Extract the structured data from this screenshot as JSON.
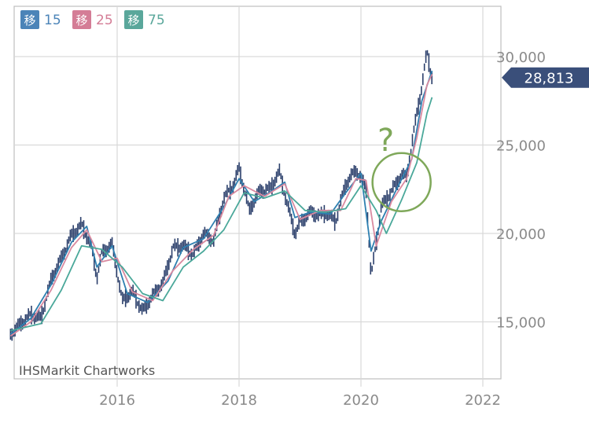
{
  "colors": {
    "grid": "#d9d9d9",
    "frame": "#bdbdbd",
    "candle": "#2b3f6b",
    "ma15": "#2e7fb0",
    "ma25": "#d98aa0",
    "ma75": "#4aa89a",
    "badge": "#3a4f7a",
    "annotation": "#7fa85a"
  },
  "legend": [
    {
      "tag": "移",
      "period": "15",
      "color": "#4b84b8"
    },
    {
      "tag": "移",
      "period": "25",
      "color": "#d47d96"
    },
    {
      "tag": "移",
      "period": "75",
      "color": "#5aa79b"
    }
  ],
  "watermark": "IHSMarkit Chartworks",
  "annotation": {
    "text": "?"
  },
  "chart_data": {
    "type": "line",
    "x_ticks": [
      "2016",
      "2018",
      "2020",
      "2022"
    ],
    "y_ticks": [
      15000,
      20000,
      25000,
      30000
    ],
    "y_tick_labels": [
      "15,000",
      "20,000",
      "25,000",
      "30,000"
    ],
    "ylim": [
      12000,
      31500
    ],
    "last_price": 28813,
    "last_price_label": "28,813",
    "grid": true,
    "annotation_circle": {
      "x": "2020-09",
      "y": 22900
    },
    "price": [
      [
        "2014-04",
        14300
      ],
      [
        "2014-06",
        14900
      ],
      [
        "2014-08",
        15400
      ],
      [
        "2014-10",
        15200
      ],
      [
        "2014-12",
        17400
      ],
      [
        "2015-02",
        18600
      ],
      [
        "2015-04",
        19900
      ],
      [
        "2015-06",
        20500
      ],
      [
        "2015-08",
        19200
      ],
      [
        "2015-09",
        17500
      ],
      [
        "2015-10",
        18900
      ],
      [
        "2015-12",
        19400
      ],
      [
        "2016-02",
        16200
      ],
      [
        "2016-04",
        16700
      ],
      [
        "2016-06",
        15600
      ],
      [
        "2016-08",
        16500
      ],
      [
        "2016-10",
        17200
      ],
      [
        "2016-12",
        19200
      ],
      [
        "2017-02",
        19300
      ],
      [
        "2017-04",
        18800
      ],
      [
        "2017-06",
        20000
      ],
      [
        "2017-08",
        19600
      ],
      [
        "2017-10",
        22000
      ],
      [
        "2017-12",
        22800
      ],
      [
        "2018-01",
        23700
      ],
      [
        "2018-03",
        21300
      ],
      [
        "2018-05",
        22400
      ],
      [
        "2018-07",
        22500
      ],
      [
        "2018-09",
        23500
      ],
      [
        "2018-10",
        22200
      ],
      [
        "2018-12",
        20000
      ],
      [
        "2019-01",
        20600
      ],
      [
        "2019-03",
        21200
      ],
      [
        "2019-05",
        21000
      ],
      [
        "2019-06",
        21200
      ],
      [
        "2019-08",
        20700
      ],
      [
        "2019-10",
        22800
      ],
      [
        "2019-12",
        23600
      ],
      [
        "2020-02",
        22600
      ],
      [
        "2020-03",
        17500
      ],
      [
        "2020-05",
        21500
      ],
      [
        "2020-07",
        22400
      ],
      [
        "2020-09",
        23300
      ],
      [
        "2020-10",
        23200
      ],
      [
        "2020-12",
        26800
      ],
      [
        "2021-01",
        28300
      ],
      [
        "2021-02",
        30300
      ],
      [
        "2021-03",
        28813
      ]
    ],
    "series": [
      {
        "name": "移15",
        "values": [
          [
            "2014-04",
            14300
          ],
          [
            "2014-08",
            15200
          ],
          [
            "2014-12",
            17100
          ],
          [
            "2015-04",
            19500
          ],
          [
            "2015-07",
            20400
          ],
          [
            "2015-09",
            18100
          ],
          [
            "2015-12",
            19300
          ],
          [
            "2016-03",
            16600
          ],
          [
            "2016-07",
            16100
          ],
          [
            "2016-11",
            17300
          ],
          [
            "2017-02",
            19200
          ],
          [
            "2017-06",
            19700
          ],
          [
            "2017-10",
            21500
          ],
          [
            "2018-01",
            23100
          ],
          [
            "2018-04",
            21800
          ],
          [
            "2018-08",
            22500
          ],
          [
            "2018-10",
            22900
          ],
          [
            "2018-12",
            20900
          ],
          [
            "2019-03",
            21200
          ],
          [
            "2019-07",
            21100
          ],
          [
            "2019-10",
            22300
          ],
          [
            "2020-01",
            23400
          ],
          [
            "2020-03",
            19000
          ],
          [
            "2020-05",
            20700
          ],
          [
            "2020-08",
            22500
          ],
          [
            "2020-11",
            24200
          ],
          [
            "2021-01",
            27500
          ],
          [
            "2021-03",
            29200
          ]
        ]
      },
      {
        "name": "移25",
        "values": [
          [
            "2014-04",
            14200
          ],
          [
            "2014-08",
            15000
          ],
          [
            "2014-12",
            16800
          ],
          [
            "2015-04",
            19200
          ],
          [
            "2015-07",
            20200
          ],
          [
            "2015-10",
            18400
          ],
          [
            "2016-01",
            18600
          ],
          [
            "2016-04",
            16700
          ],
          [
            "2016-08",
            16200
          ],
          [
            "2016-12",
            17900
          ],
          [
            "2017-04",
            19100
          ],
          [
            "2017-08",
            19900
          ],
          [
            "2017-11",
            22100
          ],
          [
            "2018-02",
            22700
          ],
          [
            "2018-06",
            22100
          ],
          [
            "2018-10",
            22800
          ],
          [
            "2019-01",
            20800
          ],
          [
            "2019-05",
            21300
          ],
          [
            "2019-09",
            21300
          ],
          [
            "2019-12",
            23100
          ],
          [
            "2020-02",
            23000
          ],
          [
            "2020-04",
            19300
          ],
          [
            "2020-07",
            21800
          ],
          [
            "2020-10",
            23100
          ],
          [
            "2020-12",
            25400
          ],
          [
            "2021-02",
            28400
          ],
          [
            "2021-03",
            29000
          ]
        ]
      },
      {
        "name": "移75",
        "values": [
          [
            "2014-04",
            14500
          ],
          [
            "2014-10",
            14900
          ],
          [
            "2015-02",
            16800
          ],
          [
            "2015-06",
            19300
          ],
          [
            "2015-10",
            19100
          ],
          [
            "2016-02",
            18100
          ],
          [
            "2016-06",
            16600
          ],
          [
            "2016-10",
            16200
          ],
          [
            "2017-02",
            18100
          ],
          [
            "2017-06",
            19000
          ],
          [
            "2017-10",
            20200
          ],
          [
            "2018-02",
            22300
          ],
          [
            "2018-06",
            22000
          ],
          [
            "2018-10",
            22400
          ],
          [
            "2019-02",
            21300
          ],
          [
            "2019-06",
            21200
          ],
          [
            "2019-10",
            21400
          ],
          [
            "2020-01",
            22700
          ],
          [
            "2020-04",
            21300
          ],
          [
            "2020-06",
            20000
          ],
          [
            "2020-09",
            21900
          ],
          [
            "2020-12",
            24000
          ],
          [
            "2021-02",
            26800
          ],
          [
            "2021-03",
            27700
          ]
        ]
      }
    ]
  }
}
